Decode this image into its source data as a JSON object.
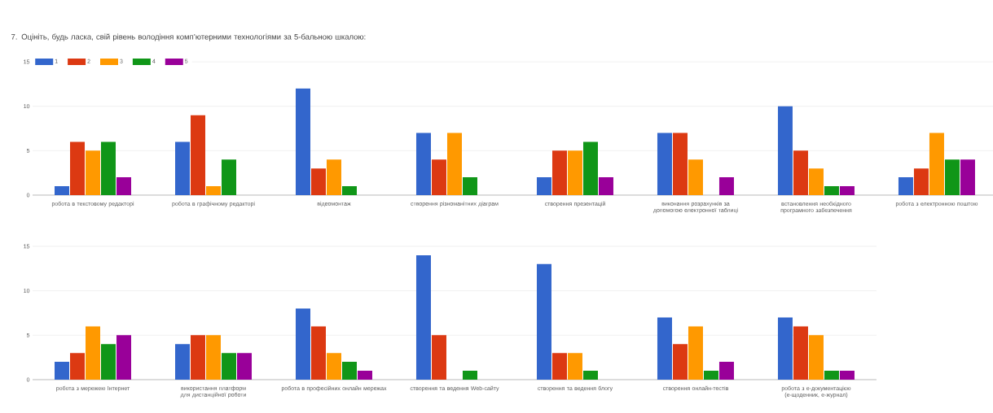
{
  "chart_data": [
    {
      "type": "bar",
      "title": "7. Оцініть, будь ласка, свій рівень володіння комп’ютерними технологіями за 5-бальною шкалою:",
      "categories": [
        "робота в текстовому редакторі",
        "робота в графічному редакторі",
        "відеомонтаж",
        "створення різноманітних діаграм",
        "створення презентацій",
        "виконання розрахунків за допомогою електронної таблиці",
        "встановлення необхідного програмного забезпечення",
        "робота з електронною поштою"
      ],
      "series": [
        {
          "name": "1",
          "color": "#3366cc",
          "values": [
            1,
            6,
            12,
            7,
            2,
            7,
            10,
            2
          ]
        },
        {
          "name": "2",
          "color": "#dc3912",
          "values": [
            6,
            9,
            3,
            4,
            5,
            7,
            5,
            3
          ]
        },
        {
          "name": "3",
          "color": "#ff9900",
          "values": [
            5,
            1,
            4,
            7,
            5,
            4,
            3,
            7
          ]
        },
        {
          "name": "4",
          "color": "#109618",
          "values": [
            6,
            4,
            1,
            2,
            6,
            0,
            1,
            4
          ]
        },
        {
          "name": "5",
          "color": "#990099",
          "values": [
            2,
            0,
            0,
            0,
            2,
            2,
            1,
            4
          ]
        }
      ],
      "ylim": [
        0,
        15
      ],
      "yticks": [
        0,
        5,
        10,
        15
      ],
      "grid": "y",
      "legend": "top left"
    },
    {
      "type": "bar",
      "categories": [
        "робота з мережею Інтернет",
        "використання платформ для дистанційної роботи",
        "робота в професійних онлайн мережах",
        "створення та ведення Web-сайту",
        "створення та ведення блогу",
        "створення онлайн-тестів",
        "робота з е-документацією (е-щоденник, е-журнал)"
      ],
      "series": [
        {
          "color": "#3366cc",
          "values": [
            2,
            4,
            8,
            14,
            13,
            7,
            7
          ]
        },
        {
          "color": "#dc3912",
          "values": [
            3,
            5,
            6,
            5,
            3,
            4,
            6
          ]
        },
        {
          "color": "#ff9900",
          "values": [
            6,
            5,
            3,
            0,
            3,
            6,
            5
          ]
        },
        {
          "color": "#109618",
          "values": [
            4,
            3,
            2,
            1,
            1,
            1,
            1
          ]
        },
        {
          "color": "#990099",
          "values": [
            5,
            3,
            1,
            0,
            0,
            2,
            1
          ]
        }
      ],
      "ylim": [
        0,
        15
      ],
      "yticks": [
        0,
        5,
        10,
        15
      ],
      "grid": "y"
    }
  ]
}
